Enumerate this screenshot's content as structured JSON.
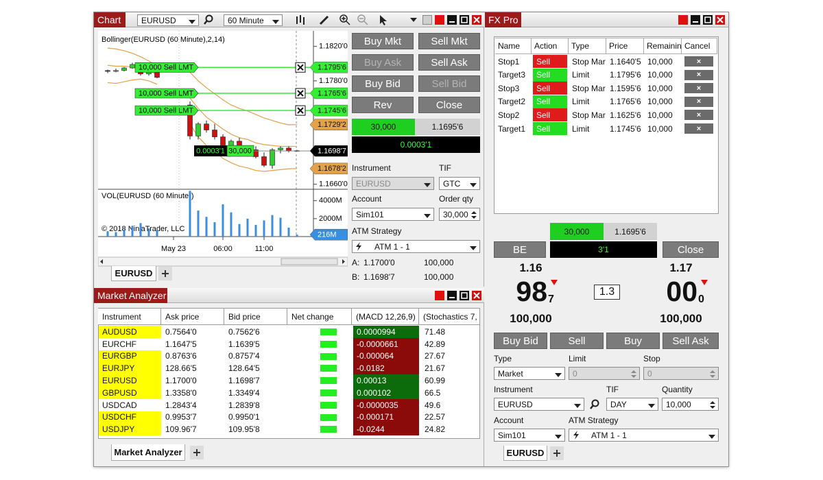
{
  "chart_window": {
    "title": "Chart",
    "instrument": "EURUSD",
    "interval": "60 Minute",
    "tab": "EURUSD"
  },
  "chart_data": {
    "type": "candlestick",
    "title": "Bollinger(EURUSD (60 Minute),2,14)",
    "categories": [
      null,
      null,
      null,
      null,
      null,
      null,
      null,
      null,
      "May 23",
      null,
      null,
      null,
      null,
      null,
      "06:00",
      null,
      null,
      null,
      null,
      "11:00",
      null,
      null,
      null,
      null
    ],
    "open": [
      1.1792,
      1.1791,
      1.1792,
      1.1795,
      1.1799,
      1.1788,
      1.1792,
      null,
      null,
      null,
      1.1752,
      1.1716,
      1.173,
      1.1723,
      1.1715,
      1.1702,
      1.171,
      1.1695,
      1.17,
      1.1692,
      1.1682,
      1.17,
      1.1702,
      1.1699
    ],
    "high": [
      1.1793,
      1.1794,
      1.1796,
      1.1801,
      1.18,
      1.1793,
      1.1794,
      null,
      null,
      null,
      1.1756,
      1.1732,
      1.1734,
      1.173,
      1.1718,
      1.1712,
      1.1714,
      1.1702,
      1.1704,
      1.1697,
      1.1702,
      1.1704,
      1.1704,
      1.17
    ],
    "low": [
      1.1789,
      1.179,
      1.1791,
      1.1794,
      1.1786,
      1.1786,
      1.1783,
      null,
      null,
      null,
      1.1712,
      1.1712,
      1.172,
      1.1712,
      1.17,
      1.1698,
      1.1693,
      1.1692,
      1.169,
      1.168,
      1.1678,
      1.1696,
      1.1697,
      1.16985
    ],
    "close": [
      1.1791,
      1.1792,
      1.1795,
      1.1799,
      1.1788,
      1.1792,
      1.1784,
      null,
      null,
      null,
      1.1716,
      1.173,
      1.1723,
      1.1715,
      1.1702,
      1.171,
      1.1695,
      1.17,
      1.1692,
      1.1682,
      1.17,
      1.1702,
      1.1699,
      1.16987
    ],
    "up_color": "#33cc33",
    "down_color": "#cc1111",
    "bands": {
      "color": "#e3a24a",
      "upper": [
        1.1818,
        1.1817,
        1.1815,
        1.1812,
        1.1808,
        1.1803,
        1.1798,
        null,
        null,
        null,
        1.179,
        1.178,
        1.1772,
        1.1765,
        1.1758,
        1.1752,
        1.1748,
        1.1745,
        1.1741,
        1.1737,
        1.1734,
        1.1731,
        1.1729,
        1.17292
      ],
      "middle": [
        1.1798,
        1.1797,
        1.1797,
        1.1796,
        1.1795,
        1.1792,
        1.1787,
        null,
        null,
        null,
        1.176,
        1.1748,
        1.1738,
        1.1731,
        1.1724,
        1.1718,
        1.1714,
        1.1712,
        1.1708,
        1.1706,
        1.1705,
        1.1704,
        1.1704,
        1.1704
      ],
      "lower": [
        1.1778,
        1.1777,
        1.1779,
        1.1781,
        1.1782,
        1.178,
        1.1776,
        null,
        null,
        null,
        1.173,
        1.1715,
        1.1705,
        1.1698,
        1.169,
        1.1685,
        1.1681,
        1.1679,
        1.1676,
        1.1675,
        1.1676,
        1.1677,
        1.1678,
        1.16782
      ]
    },
    "ylim": [
      1.1655,
      1.1838
    ],
    "yticks": [
      {
        "value": 1.182,
        "label": "1.1820'0"
      },
      {
        "value": 1.178,
        "label": "1.1780'0"
      },
      {
        "value": 1.166,
        "label": "1.1660'0"
      }
    ],
    "orders": [
      {
        "label": "10,000  Sell LMT",
        "price": {
          "value": 1.17956,
          "label": "1.1795'6"
        }
      },
      {
        "label": "10,000  Sell LMT",
        "price": {
          "value": 1.17656,
          "label": "1.1765'6"
        }
      },
      {
        "label": "10,000  Sell LMT",
        "price": {
          "value": 1.17456,
          "label": "1.1745'6"
        }
      }
    ],
    "order_color": "#33ee33",
    "markers": [
      {
        "value": 1.17292,
        "label": "1.1729'2",
        "color": "#e3a24a"
      },
      {
        "value": 1.16987,
        "label": "1.1698'7",
        "color": "#000000"
      },
      {
        "value": 1.16782,
        "label": "1.1678'2",
        "color": "#e3a24a"
      }
    ],
    "position": {
      "pnl": "0.0003'1",
      "qty": "30,000"
    },
    "volume": {
      "title": "VOL(EURUSD (60 Minute))",
      "color": "#3a8ee0",
      "values": [
        600,
        500,
        800,
        1200,
        1500,
        900,
        700,
        null,
        null,
        null,
        5100,
        2900,
        2200,
        1600,
        3600,
        2700,
        1400,
        2000,
        1300,
        1800,
        2400,
        2100,
        1000,
        216
      ],
      "ylim": [
        0,
        5200
      ],
      "yticks": [
        {
          "value": 4000,
          "label": "4000M"
        },
        {
          "value": 2000,
          "label": "2000M"
        }
      ],
      "last": {
        "value": 216,
        "label": "216M"
      }
    },
    "copyright": "© 2018 NinjaTrader, LLC"
  },
  "order_panel": {
    "buttons": [
      {
        "label": "Buy Mkt",
        "enabled": true
      },
      {
        "label": "Sell Mkt",
        "enabled": true
      },
      {
        "label": "Buy Ask",
        "enabled": false
      },
      {
        "label": "Sell Ask",
        "enabled": true
      },
      {
        "label": "Buy Bid",
        "enabled": true
      },
      {
        "label": "Sell Bid",
        "enabled": false
      },
      {
        "label": "Rev",
        "enabled": true
      },
      {
        "label": "Close",
        "enabled": true
      }
    ],
    "position": {
      "qty": "30,000",
      "price": "1.1695'6",
      "pnl": "0.0003'1"
    },
    "instrument_label": "Instrument",
    "instrument": "EURUSD",
    "tif_label": "TIF",
    "tif": "GTC",
    "account_label": "Account",
    "account": "Sim101",
    "qty_label": "Order qty",
    "qty": "30,000",
    "atm_label": "ATM Strategy",
    "atm": "ATM 1 - 1",
    "quotes": [
      {
        "label": "A:",
        "price": "1.1700'0",
        "size": "100,000"
      },
      {
        "label": "B:",
        "price": "1.1698'7",
        "size": "100,000"
      }
    ]
  },
  "market_analyzer": {
    "title": "Market Analyzer",
    "columns": [
      "Instrument",
      "Ask price",
      "Bid price",
      "Net change",
      "(MACD 12,26,9)",
      "(Stochastics 7,"
    ],
    "rows": [
      {
        "instrument": "AUDUSD",
        "highlight": true,
        "ask": "0.7564'0",
        "bid": "0.7562'6",
        "macd": "0.0000994",
        "stochastics": "71.48"
      },
      {
        "instrument": "EURCHF",
        "highlight": false,
        "ask": "1.1647'5",
        "bid": "1.1639'5",
        "macd": "-0.0000661",
        "stochastics": "42.89"
      },
      {
        "instrument": "EURGBP",
        "highlight": true,
        "ask": "0.8763'6",
        "bid": "0.8757'4",
        "macd": "-0.000064",
        "stochastics": "27.67"
      },
      {
        "instrument": "EURJPY",
        "highlight": true,
        "ask": "128.66'5",
        "bid": "128.64'5",
        "macd": "-0.0182",
        "stochastics": "21.67"
      },
      {
        "instrument": "EURUSD",
        "highlight": true,
        "ask": "1.1700'0",
        "bid": "1.1698'7",
        "macd": "0.00013",
        "stochastics": "60.99"
      },
      {
        "instrument": "GBPUSD",
        "highlight": true,
        "ask": "1.3358'0",
        "bid": "1.3349'4",
        "macd": "0.000102",
        "stochastics": "66.5"
      },
      {
        "instrument": "USDCAD",
        "highlight": false,
        "ask": "1.2843'4",
        "bid": "1.2839'8",
        "macd": "-0.0000035",
        "stochastics": "49.6"
      },
      {
        "instrument": "USDCHF",
        "highlight": true,
        "ask": "0.9953'7",
        "bid": "0.9950'1",
        "macd": "-0.000171",
        "stochastics": "22.57"
      },
      {
        "instrument": "USDJPY",
        "highlight": true,
        "ask": "109.96'7",
        "bid": "109.95'8",
        "macd": "-0.0244",
        "stochastics": "24.82"
      }
    ],
    "tab": "Market Analyzer"
  },
  "fx_pro": {
    "title": "FX Pro",
    "orders": {
      "columns": [
        "Name",
        "Action",
        "Type",
        "Price",
        "Remaining",
        "Cancel"
      ],
      "rows": [
        {
          "name": "Stop1",
          "action": "Sell",
          "action_color": "#e01b1b",
          "type": "Stop Market",
          "price": "1.1640'5",
          "remaining": "10,000",
          "cancel": "×"
        },
        {
          "name": "Target3",
          "action": "Sell",
          "action_color": "#22dd22",
          "type": "Limit",
          "price": "1.1795'6",
          "remaining": "10,000",
          "cancel": "×"
        },
        {
          "name": "Stop3",
          "action": "Sell",
          "action_color": "#e01b1b",
          "type": "Stop Market",
          "price": "1.1595'6",
          "remaining": "10,000",
          "cancel": "×"
        },
        {
          "name": "Target2",
          "action": "Sell",
          "action_color": "#22dd22",
          "type": "Limit",
          "price": "1.1765'6",
          "remaining": "10,000",
          "cancel": "×"
        },
        {
          "name": "Stop2",
          "action": "Sell",
          "action_color": "#e01b1b",
          "type": "Stop Market",
          "price": "1.1625'6",
          "remaining": "10,000",
          "cancel": "×"
        },
        {
          "name": "Target1",
          "action": "Sell",
          "action_color": "#22dd22",
          "type": "Limit",
          "price": "1.1745'6",
          "remaining": "10,000",
          "cancel": "×"
        }
      ]
    },
    "position": {
      "qty": "30,000",
      "price": "1.1695'6",
      "pnl": "3'1"
    },
    "be_button": "BE",
    "close_button": "Close",
    "bid": {
      "handle": "1.16",
      "pips": "98",
      "fraction": "7",
      "size": "100,000"
    },
    "ask": {
      "handle": "1.17",
      "pips": "00",
      "fraction": "0",
      "size": "100,000"
    },
    "spread": "1.3",
    "buttons": [
      "Buy Bid",
      "Sell",
      "Buy",
      "Sell Ask"
    ],
    "fields": [
      {
        "label": "Type",
        "value": "Market",
        "kind": "dropdown",
        "enabled": true
      },
      {
        "label": "Limit",
        "value": "0",
        "kind": "spinner",
        "enabled": false
      },
      {
        "label": "Stop",
        "value": "0",
        "kind": "spinner",
        "enabled": false
      },
      {
        "label": "Instrument",
        "value": "EURUSD",
        "kind": "dropdown",
        "enabled": true
      },
      {
        "label": "TIF",
        "value": "DAY",
        "kind": "dropdown",
        "enabled": true
      },
      {
        "label": "Quantity",
        "value": "10,000",
        "kind": "spinner",
        "enabled": true
      },
      {
        "label": "Account",
        "value": "Sim101",
        "kind": "dropdown",
        "enabled": true
      },
      {
        "label": "ATM Strategy",
        "value": "ATM 1 - 1",
        "kind": "dropdown",
        "enabled": true
      }
    ],
    "tab": "EURUSD"
  }
}
